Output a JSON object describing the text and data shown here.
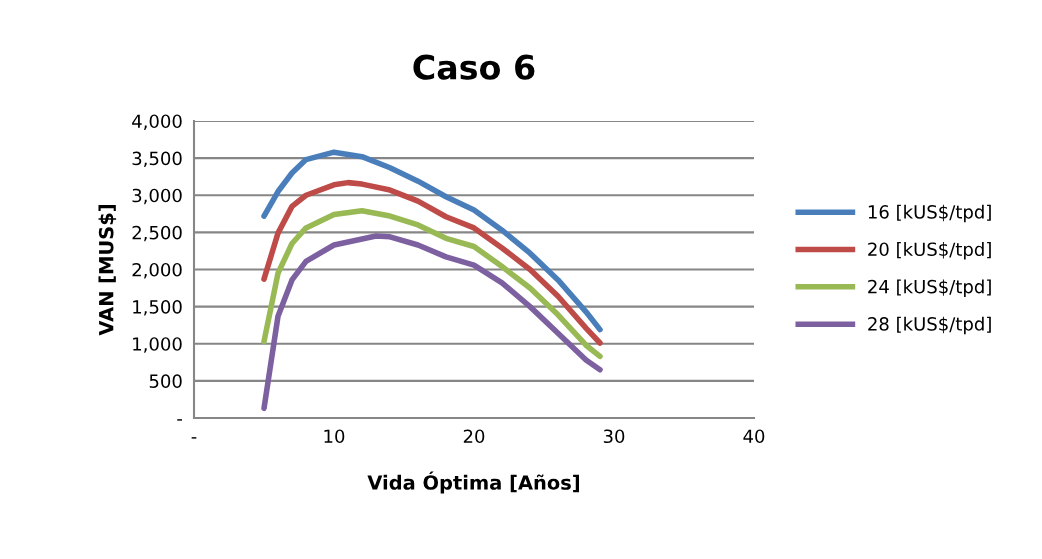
{
  "chart_data": {
    "type": "line",
    "title": "Caso 6",
    "xlabel": "Vida Óptima [Años]",
    "ylabel": "VAN [MUS$]",
    "xlim": [
      0,
      40
    ],
    "xticks": [
      {
        "value": 0,
        "label": "-"
      },
      10,
      20,
      30,
      40
    ],
    "ylim": [
      0,
      4000
    ],
    "yticks": [
      {
        "value": 0,
        "label": "-"
      },
      {
        "value": 500,
        "label": "500"
      },
      {
        "value": 1000,
        "label": "1,000"
      },
      {
        "value": 1500,
        "label": "1,500"
      },
      {
        "value": 2000,
        "label": "2,000"
      },
      {
        "value": 2500,
        "label": "2,500"
      },
      {
        "value": 3000,
        "label": "3,000"
      },
      {
        "value": 3500,
        "label": "3,500"
      },
      {
        "value": 4000,
        "label": "4,000"
      }
    ],
    "grid": "y",
    "legend": "right",
    "marker": "none",
    "line_style": "solid",
    "series": [
      {
        "name": "16 [kUS$/tpd]",
        "color": "#4a7ebb",
        "x": [
          5,
          6,
          7,
          8,
          10,
          12,
          14,
          16,
          18,
          20,
          22,
          24,
          26,
          28,
          29
        ],
        "values": [
          2720,
          3050,
          3300,
          3480,
          3580,
          3520,
          3370,
          3190,
          2980,
          2800,
          2530,
          2220,
          1860,
          1430,
          1190
        ]
      },
      {
        "name": "20 [kUS$/tpd]",
        "color": "#be4b48",
        "x": [
          5,
          6,
          7,
          8,
          10,
          11,
          12,
          14,
          16,
          18,
          20,
          22,
          24,
          26,
          28,
          29
        ],
        "values": [
          1870,
          2490,
          2850,
          3000,
          3140,
          3170,
          3150,
          3070,
          2920,
          2710,
          2560,
          2290,
          2000,
          1640,
          1210,
          1010
        ]
      },
      {
        "name": "24 [kUS$/tpd]",
        "color": "#98b954",
        "x": [
          5,
          6,
          7,
          8,
          10,
          12,
          14,
          16,
          18,
          20,
          22,
          24,
          26,
          28,
          29
        ],
        "values": [
          1030,
          1950,
          2350,
          2560,
          2740,
          2790,
          2720,
          2600,
          2420,
          2310,
          2040,
          1750,
          1390,
          980,
          830
        ]
      },
      {
        "name": "28 [kUS$/tpd]",
        "color": "#7d60a0",
        "x": [
          5,
          6,
          7,
          8,
          10,
          13,
          14,
          16,
          18,
          20,
          22,
          24,
          26,
          28,
          29
        ],
        "values": [
          130,
          1370,
          1860,
          2110,
          2330,
          2450,
          2440,
          2330,
          2170,
          2060,
          1820,
          1500,
          1140,
          780,
          650
        ]
      }
    ]
  }
}
